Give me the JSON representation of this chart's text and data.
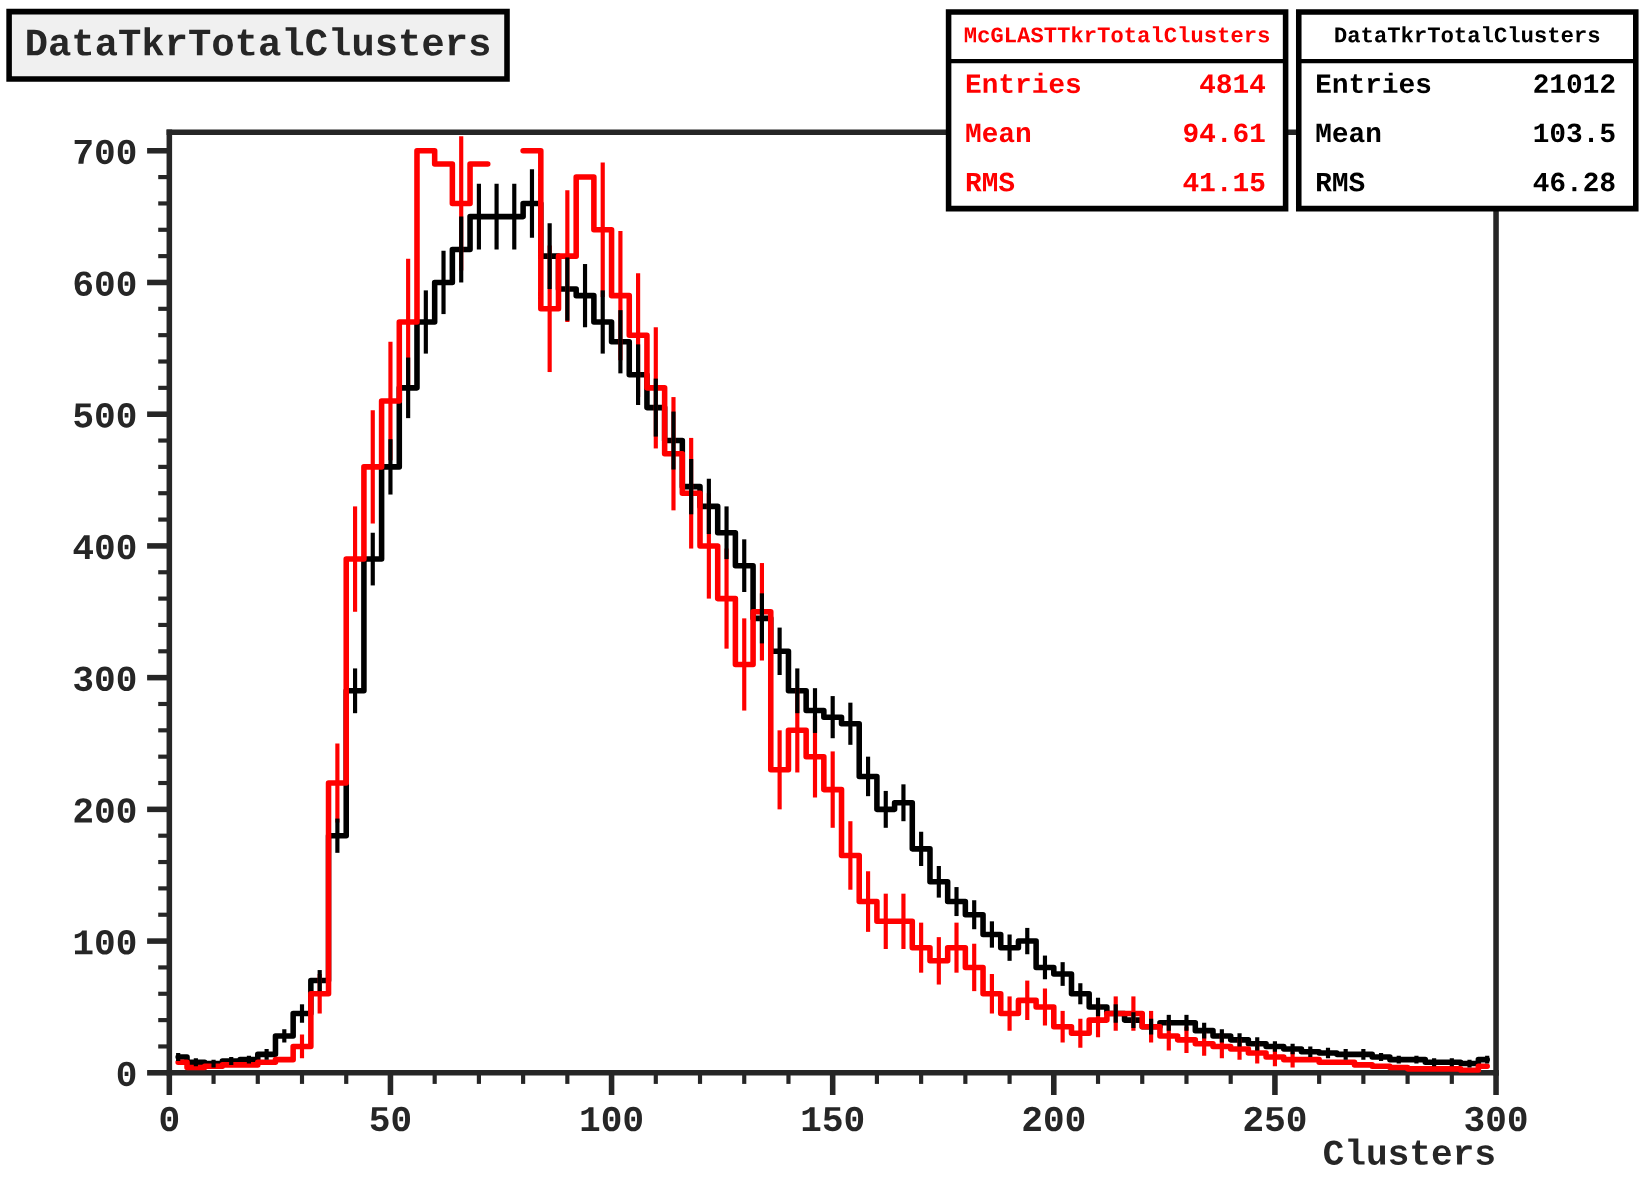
{
  "chart_data": {
    "type": "step",
    "title": "DataTkrTotalClusters",
    "xlabel": "Clusters",
    "x": [
      2,
      6,
      10,
      14,
      18,
      22,
      26,
      30,
      34,
      38,
      42,
      46,
      50,
      54,
      58,
      62,
      66,
      70,
      74,
      78,
      82,
      86,
      90,
      94,
      98,
      102,
      106,
      110,
      114,
      118,
      122,
      126,
      130,
      134,
      138,
      142,
      146,
      150,
      154,
      158,
      162,
      166,
      170,
      174,
      178,
      182,
      186,
      190,
      194,
      198,
      202,
      206,
      210,
      214,
      218,
      222,
      226,
      230,
      234,
      238,
      242,
      246,
      250,
      254,
      258,
      262,
      266,
      270,
      274,
      278,
      282,
      286,
      290,
      294,
      298
    ],
    "series": [
      {
        "name": "DataTkrTotalClusters",
        "color": "#000000",
        "values": [
          12,
          8,
          7,
          9,
          10,
          14,
          28,
          45,
          70,
          180,
          290,
          390,
          460,
          520,
          570,
          600,
          625,
          650,
          650,
          650,
          660,
          620,
          595,
          590,
          570,
          555,
          530,
          505,
          480,
          445,
          430,
          410,
          385,
          345,
          320,
          290,
          275,
          270,
          265,
          225,
          200,
          205,
          170,
          145,
          130,
          120,
          105,
          95,
          100,
          80,
          75,
          60,
          50,
          45,
          40,
          35,
          38,
          38,
          32,
          28,
          25,
          22,
          20,
          18,
          16,
          15,
          14,
          14,
          12,
          10,
          10,
          8,
          8,
          7,
          10
        ],
        "errors": [
          3,
          3,
          3,
          3,
          3,
          4,
          5,
          7,
          8,
          13,
          17,
          20,
          21,
          23,
          24,
          24,
          25,
          25,
          25,
          25,
          26,
          25,
          24,
          24,
          24,
          24,
          23,
          22,
          22,
          21,
          21,
          20,
          20,
          19,
          18,
          17,
          17,
          16,
          16,
          15,
          14,
          14,
          13,
          12,
          11,
          11,
          10,
          10,
          10,
          9,
          9,
          8,
          7,
          7,
          6,
          6,
          6,
          6,
          6,
          5,
          5,
          5,
          4,
          4,
          4,
          4,
          4,
          4,
          3,
          3,
          3,
          3,
          3,
          3,
          3
        ]
      },
      {
        "name": "McGLASTTkrTotalClusters",
        "color": "#ff0000",
        "values": [
          8,
          4,
          5,
          6,
          6,
          8,
          10,
          20,
          60,
          220,
          390,
          460,
          510,
          570,
          700,
          690,
          660,
          690,
          null,
          null,
          700,
          580,
          620,
          680,
          640,
          590,
          560,
          520,
          470,
          440,
          400,
          360,
          310,
          350,
          230,
          260,
          240,
          215,
          165,
          130,
          115,
          115,
          95,
          85,
          95,
          80,
          60,
          45,
          55,
          50,
          35,
          30,
          40,
          45,
          45,
          35,
          28,
          25,
          22,
          20,
          18,
          15,
          12,
          10,
          10,
          8,
          8,
          6,
          5,
          4,
          3,
          3,
          3,
          2,
          5
        ],
        "errors": [
          null,
          null,
          null,
          null,
          null,
          null,
          null,
          9,
          15,
          30,
          40,
          43,
          45,
          48,
          null,
          null,
          51,
          null,
          null,
          null,
          null,
          48,
          50,
          null,
          51,
          49,
          47,
          46,
          43,
          42,
          40,
          38,
          35,
          37,
          30,
          32,
          31,
          29,
          26,
          23,
          21,
          21,
          19,
          18,
          19,
          18,
          15,
          13,
          15,
          14,
          12,
          11,
          13,
          13,
          13,
          12,
          11,
          10,
          9,
          9,
          8,
          8,
          7,
          6,
          null,
          null,
          null,
          null,
          null,
          null,
          null,
          null,
          null,
          null,
          null
        ]
      }
    ],
    "annotations": [
      "Entries",
      "21012",
      "Mean",
      "103.5",
      "RMS",
      "46.28",
      "Entries",
      "4814",
      "Mean",
      "94.61",
      "RMS",
      "41.15"
    ],
    "xlim": [
      0,
      300
    ],
    "ylim": [
      0,
      714
    ],
    "xticks": [
      0,
      50,
      100,
      150,
      200,
      250,
      300
    ],
    "yticks": [
      0,
      100,
      200,
      300,
      400,
      500,
      600,
      700
    ],
    "grid": false,
    "legend": false
  }
}
